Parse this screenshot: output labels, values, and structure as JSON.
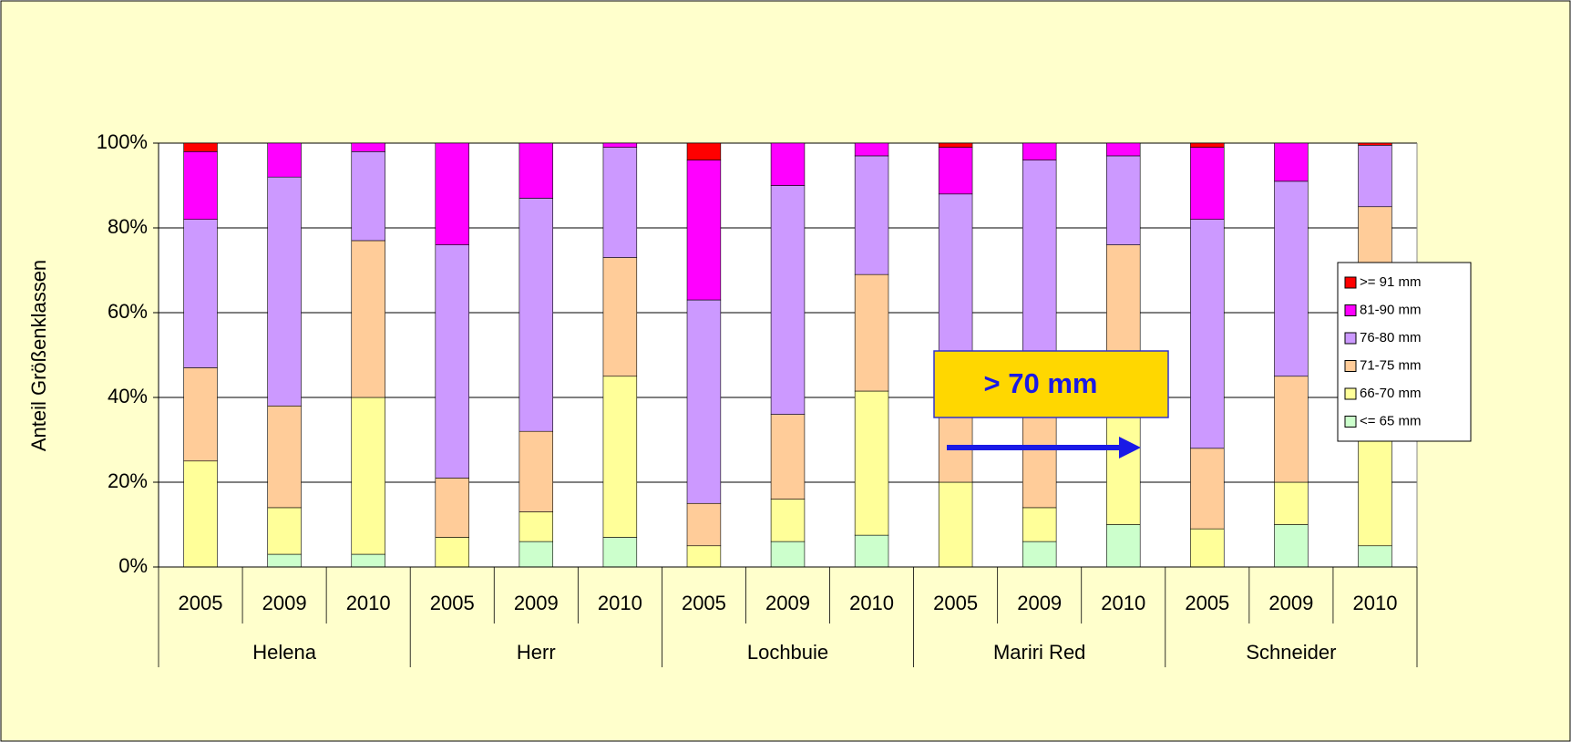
{
  "chart_data": {
    "type": "bar",
    "stacked": true,
    "y_label": "Anteil Größenklassen",
    "categories": [
      "2005",
      "2009",
      "2010",
      "2005",
      "2009",
      "2010",
      "2005",
      "2009",
      "2010",
      "2005",
      "2009",
      "2010",
      "2005",
      "2009",
      "2010"
    ],
    "groups": [
      "Helena",
      "Herr",
      "Lochbuie",
      "Mariri Red",
      "Schneider"
    ],
    "series": [
      {
        "name": "<= 65 mm",
        "color": "#ccffcc",
        "values": [
          0,
          3,
          3,
          0,
          6,
          7,
          0,
          6,
          7.5,
          0,
          6,
          10,
          0,
          10,
          5
        ]
      },
      {
        "name": "66-70 mm",
        "color": "#ffff99",
        "values": [
          25,
          11,
          37,
          7,
          7,
          38,
          5,
          10,
          34,
          20,
          8,
          30,
          9,
          10,
          37
        ]
      },
      {
        "name": "71-75 mm",
        "color": "#ffcc99",
        "values": [
          22,
          24,
          37,
          14,
          19,
          28,
          10,
          20,
          27.5,
          20,
          24,
          36,
          19,
          25,
          43
        ]
      },
      {
        "name": "76-80 mm",
        "color": "#cc99ff",
        "values": [
          35,
          54,
          21,
          55,
          55,
          26,
          48,
          54,
          28,
          48,
          58,
          21,
          54,
          46,
          14.5
        ]
      },
      {
        "name": "81-90 mm",
        "color": "#ff00ff",
        "values": [
          16,
          8,
          2,
          24,
          13,
          1,
          33,
          10,
          3,
          11,
          4,
          3,
          17,
          9,
          0
        ]
      },
      {
        "name": ">= 91 mm",
        "color": "#ff0000",
        "values": [
          2,
          0,
          0,
          0,
          0,
          0,
          4,
          0,
          0,
          1,
          0,
          0,
          1,
          0,
          0.5
        ]
      }
    ],
    "ylim": [
      0,
      100
    ],
    "yticks": [
      {
        "value": 0,
        "label": "0%"
      },
      {
        "value": 20,
        "label": "20%"
      },
      {
        "value": 40,
        "label": "40%"
      },
      {
        "value": 60,
        "label": "60%"
      },
      {
        "value": 80,
        "label": "80%"
      },
      {
        "value": 100,
        "label": "100%"
      }
    ],
    "grid": true,
    "legend": "right",
    "annotation": "> 70 mm"
  }
}
